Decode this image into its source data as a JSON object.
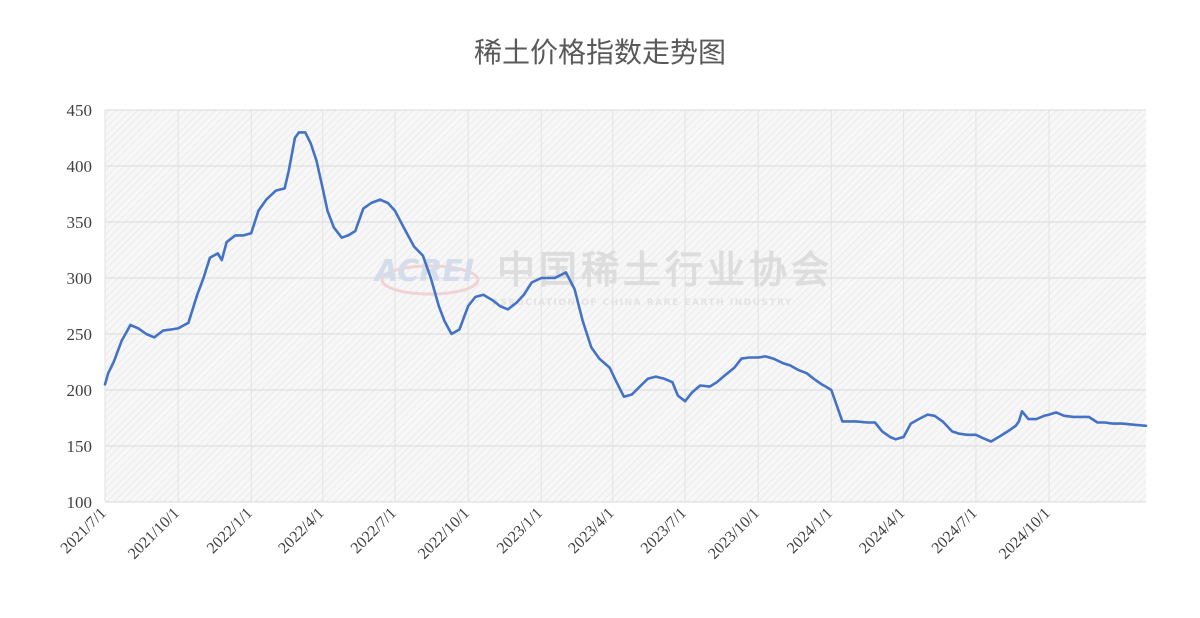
{
  "chart_data": {
    "type": "line",
    "title": "稀土价格指数走势图",
    "xlabel": "",
    "ylabel": "",
    "ylim": [
      100,
      450
    ],
    "yticks": [
      100,
      150,
      200,
      250,
      300,
      350,
      400,
      450
    ],
    "xlim": [
      "2021-07-01",
      "2025-01-31"
    ],
    "xtick_labels": [
      "2021/7/1",
      "2021/10/1",
      "2022/1/1",
      "2022/4/1",
      "2022/7/1",
      "2022/10/1",
      "2023/1/1",
      "2023/4/1",
      "2023/7/1",
      "2023/10/1",
      "2024/1/1",
      "2024/4/1",
      "2024/7/1",
      "2024/10/1"
    ],
    "xtick_dates": [
      "2021-07-01",
      "2021-10-01",
      "2022-01-01",
      "2022-04-01",
      "2022-07-01",
      "2022-10-01",
      "2023-01-01",
      "2023-04-01",
      "2023-07-01",
      "2023-10-01",
      "2024-01-01",
      "2024-04-01",
      "2024-07-01",
      "2024-10-01"
    ],
    "grid": true,
    "line_color": "#4472c4",
    "series": [
      {
        "x": [
          "2021-07-01",
          "2021-07-05",
          "2021-07-12",
          "2021-07-22",
          "2021-08-02",
          "2021-08-12",
          "2021-08-22",
          "2021-09-01",
          "2021-09-12",
          "2021-09-22",
          "2021-10-01",
          "2021-10-14",
          "2021-10-25",
          "2021-11-02",
          "2021-11-10",
          "2021-11-20",
          "2021-11-25",
          "2021-12-01",
          "2021-12-12",
          "2021-12-22",
          "2022-01-01",
          "2022-01-10",
          "2022-01-20",
          "2022-02-01",
          "2022-02-12",
          "2022-02-17",
          "2022-02-25",
          "2022-03-02",
          "2022-03-10",
          "2022-03-17",
          "2022-03-24",
          "2022-04-01",
          "2022-04-07",
          "2022-04-15",
          "2022-04-25",
          "2022-05-03",
          "2022-05-12",
          "2022-05-22",
          "2022-06-01",
          "2022-06-12",
          "2022-06-22",
          "2022-07-01",
          "2022-07-12",
          "2022-07-25",
          "2022-08-05",
          "2022-08-15",
          "2022-08-25",
          "2022-09-01",
          "2022-09-10",
          "2022-09-20",
          "2022-10-01",
          "2022-10-10",
          "2022-10-20",
          "2022-11-01",
          "2022-11-10",
          "2022-11-20",
          "2022-12-01",
          "2022-12-10",
          "2022-12-20",
          "2023-01-01",
          "2023-01-10",
          "2023-01-18",
          "2023-02-01",
          "2023-02-12",
          "2023-02-22",
          "2023-03-05",
          "2023-03-15",
          "2023-03-28",
          "2023-04-05",
          "2023-04-15",
          "2023-04-25",
          "2023-05-05",
          "2023-05-15",
          "2023-05-25",
          "2023-06-05",
          "2023-06-15",
          "2023-06-22",
          "2023-07-01",
          "2023-07-10",
          "2023-07-20",
          "2023-08-01",
          "2023-08-10",
          "2023-08-20",
          "2023-09-01",
          "2023-09-10",
          "2023-09-20",
          "2023-10-01",
          "2023-10-10",
          "2023-10-20",
          "2023-11-01",
          "2023-11-10",
          "2023-11-20",
          "2023-12-01",
          "2023-12-10",
          "2023-12-20",
          "2023-12-25",
          "2024-01-01",
          "2024-01-15",
          "2024-02-01",
          "2024-02-15",
          "2024-02-25",
          "2024-03-05",
          "2024-03-15",
          "2024-03-22",
          "2024-04-01",
          "2024-04-10",
          "2024-04-20",
          "2024-05-01",
          "2024-05-10",
          "2024-05-20",
          "2024-06-01",
          "2024-06-10",
          "2024-06-20",
          "2024-07-01",
          "2024-07-10",
          "2024-07-20",
          "2024-08-01",
          "2024-08-10",
          "2024-08-20",
          "2024-08-24",
          "2024-08-28",
          "2024-09-05",
          "2024-09-15",
          "2024-09-25",
          "2024-10-01",
          "2024-10-10",
          "2024-10-20",
          "2024-11-01",
          "2024-11-10",
          "2024-11-20",
          "2024-12-01",
          "2024-12-10",
          "2024-12-20",
          "2025-01-01",
          "2025-01-15",
          "2025-01-31"
        ],
        "values": [
          205,
          215,
          225,
          244,
          258,
          255,
          250,
          247,
          253,
          254,
          255,
          260,
          285,
          300,
          318,
          322,
          316,
          332,
          338,
          338,
          340,
          360,
          370,
          378,
          380,
          395,
          425,
          430,
          430,
          420,
          405,
          380,
          360,
          345,
          336,
          338,
          342,
          362,
          367,
          370,
          367,
          360,
          345,
          328,
          320,
          300,
          275,
          262,
          250,
          254,
          275,
          283,
          285,
          280,
          275,
          272,
          278,
          285,
          296,
          300,
          300,
          300,
          305,
          290,
          262,
          238,
          228,
          220,
          208,
          194,
          196,
          203,
          210,
          212,
          210,
          207,
          195,
          190,
          198,
          204,
          203,
          207,
          213,
          220,
          228,
          229,
          229,
          230,
          228,
          224,
          222,
          218,
          215,
          210,
          205,
          203,
          200,
          172,
          172,
          171,
          171,
          163,
          158,
          156,
          158,
          170,
          174,
          178,
          177,
          172,
          163,
          161,
          160,
          160,
          157,
          154,
          159,
          163,
          168,
          172,
          181,
          174,
          174,
          177,
          178,
          180,
          177,
          176,
          176,
          176,
          171,
          171,
          170,
          170,
          169,
          168
        ]
      }
    ]
  },
  "watermark": {
    "logo_text": "ACREI",
    "chinese_name": "中国稀土行业协会",
    "english_name": "ASSOCIATION OF CHINA RARE EARTH INDUSTRY"
  }
}
